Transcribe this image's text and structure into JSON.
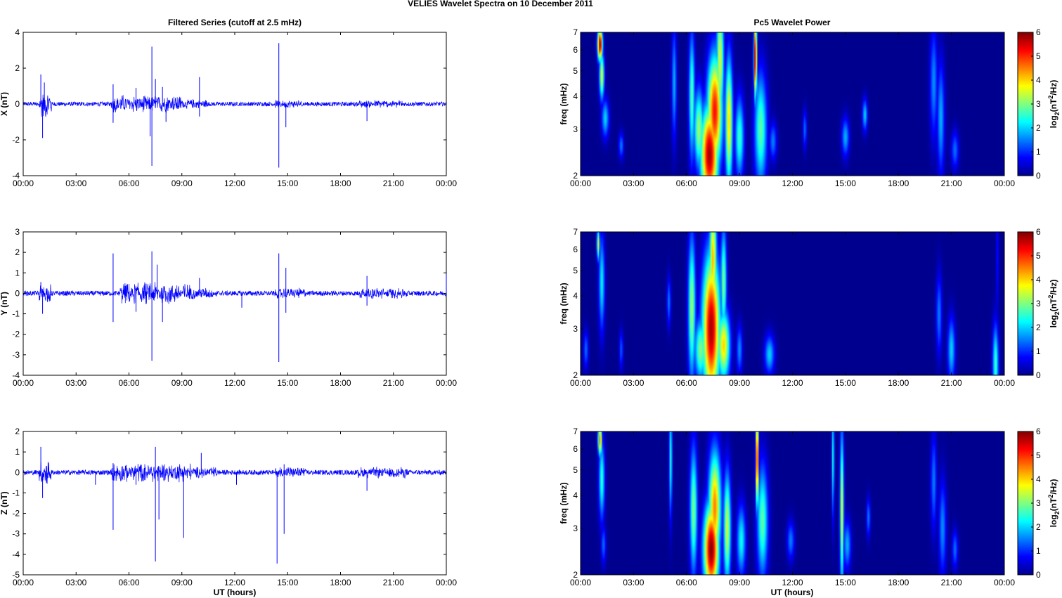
{
  "figure_title": "VELIES Wavelet Spectra on 10 December  2011",
  "left_column_title": "Filtered Series (cutoff at 2.5 mHz)",
  "right_column_title": "Pc5 Wavelet Power",
  "x_axis_label": "UT (hours)",
  "x_ticks": [
    "00:00",
    "03:00",
    "06:00",
    "09:00",
    "12:00",
    "15:00",
    "18:00",
    "21:00",
    "00:00"
  ],
  "spectrogram_ylabel": "freq (mHz)",
  "colorbar_label": "log2(nT2/Hz)",
  "colormap": [
    "#00008f",
    "#0000ff",
    "#0080ff",
    "#00ffff",
    "#80ff80",
    "#ffff00",
    "#ff8000",
    "#ff0000",
    "#800000"
  ],
  "series_color": "#0000ff",
  "chart_data": [
    {
      "type": "line",
      "panel": "X",
      "ylabel": "X (nT)",
      "ylim": [
        -4,
        4
      ],
      "yticks": [
        "4",
        "2",
        "0",
        "-2",
        "-4"
      ],
      "xlim_hours": [
        0,
        24
      ],
      "baseline_amplitude": 0.12,
      "spikes": [
        {
          "t": 1.0,
          "y": 1.65
        },
        {
          "t": 1.1,
          "y": -1.9
        },
        {
          "t": 1.2,
          "y": 1.2
        },
        {
          "t": 5.1,
          "y": 1.1
        },
        {
          "t": 5.1,
          "y": -1.05
        },
        {
          "t": 6.4,
          "y": 0.9
        },
        {
          "t": 7.2,
          "y": -1.8
        },
        {
          "t": 7.3,
          "y": 3.2
        },
        {
          "t": 7.3,
          "y": -3.45
        },
        {
          "t": 7.5,
          "y": 1.4
        },
        {
          "t": 7.9,
          "y": 0.95
        },
        {
          "t": 8.1,
          "y": -1.0
        },
        {
          "t": 10.0,
          "y": 1.5
        },
        {
          "t": 10.0,
          "y": -0.7
        },
        {
          "t": 14.5,
          "y": 3.4
        },
        {
          "t": 14.5,
          "y": -3.55
        },
        {
          "t": 14.9,
          "y": -1.3
        },
        {
          "t": 19.5,
          "y": -0.95
        }
      ],
      "bursts": [
        {
          "from": 0.9,
          "to": 1.6,
          "amp": 0.9
        },
        {
          "from": 5.0,
          "to": 9.0,
          "amp": 0.55
        },
        {
          "from": 9.0,
          "to": 10.5,
          "amp": 0.3
        },
        {
          "from": 14.3,
          "to": 15.8,
          "amp": 0.25
        },
        {
          "from": 19.0,
          "to": 21.5,
          "amp": 0.25
        }
      ]
    },
    {
      "type": "line",
      "panel": "Y",
      "ylabel": "Y (nT)",
      "ylim": [
        -4,
        3
      ],
      "yticks": [
        "3",
        "2",
        "1",
        "0",
        "-1",
        "-2",
        "-3",
        "-4"
      ],
      "xlim_hours": [
        0,
        24
      ],
      "baseline_amplitude": 0.12,
      "spikes": [
        {
          "t": 1.0,
          "y": 0.55
        },
        {
          "t": 1.1,
          "y": -1.0
        },
        {
          "t": 5.1,
          "y": 1.95
        },
        {
          "t": 5.1,
          "y": -1.4
        },
        {
          "t": 6.4,
          "y": -0.9
        },
        {
          "t": 7.3,
          "y": 2.05
        },
        {
          "t": 7.3,
          "y": -3.3
        },
        {
          "t": 7.6,
          "y": 1.4
        },
        {
          "t": 7.9,
          "y": -1.4
        },
        {
          "t": 10.0,
          "y": 0.75
        },
        {
          "t": 12.4,
          "y": -0.7
        },
        {
          "t": 14.5,
          "y": 1.95
        },
        {
          "t": 14.5,
          "y": -3.35
        },
        {
          "t": 14.9,
          "y": 1.25
        },
        {
          "t": 14.9,
          "y": -0.95
        },
        {
          "t": 19.5,
          "y": 0.85
        },
        {
          "t": 19.5,
          "y": -0.6
        },
        {
          "t": 24.0,
          "y": 0.95
        }
      ],
      "bursts": [
        {
          "from": 0.9,
          "to": 1.6,
          "amp": 0.5
        },
        {
          "from": 5.5,
          "to": 9.5,
          "amp": 0.6
        },
        {
          "from": 9.5,
          "to": 11.0,
          "amp": 0.3
        },
        {
          "from": 14.3,
          "to": 16.0,
          "amp": 0.3
        },
        {
          "from": 19.0,
          "to": 21.8,
          "amp": 0.3
        }
      ]
    },
    {
      "type": "line",
      "panel": "Z",
      "ylabel": "Z (nT)",
      "ylim": [
        -5,
        2
      ],
      "yticks": [
        "2",
        "1",
        "0",
        "-1",
        "-2",
        "-3",
        "-4",
        "-5"
      ],
      "xlim_hours": [
        0,
        24
      ],
      "baseline_amplitude": 0.12,
      "spikes": [
        {
          "t": 1.0,
          "y": 1.25
        },
        {
          "t": 1.1,
          "y": -1.25
        },
        {
          "t": 4.1,
          "y": -0.6
        },
        {
          "t": 5.1,
          "y": 0.45
        },
        {
          "t": 5.1,
          "y": -2.8
        },
        {
          "t": 6.4,
          "y": -0.6
        },
        {
          "t": 7.5,
          "y": 1.25
        },
        {
          "t": 7.5,
          "y": -4.35
        },
        {
          "t": 7.7,
          "y": -2.3
        },
        {
          "t": 9.1,
          "y": -3.2
        },
        {
          "t": 10.1,
          "y": 0.95
        },
        {
          "t": 12.1,
          "y": -0.6
        },
        {
          "t": 14.4,
          "y": -4.45
        },
        {
          "t": 14.8,
          "y": 0.4
        },
        {
          "t": 14.8,
          "y": -3.0
        },
        {
          "t": 19.5,
          "y": -0.9
        }
      ],
      "bursts": [
        {
          "from": 0.9,
          "to": 1.6,
          "amp": 0.7
        },
        {
          "from": 5.0,
          "to": 9.5,
          "amp": 0.5
        },
        {
          "from": 9.5,
          "to": 11.0,
          "amp": 0.3
        },
        {
          "from": 14.3,
          "to": 16.0,
          "amp": 0.3
        },
        {
          "from": 19.0,
          "to": 21.8,
          "amp": 0.3
        }
      ]
    },
    {
      "type": "heatmap",
      "panel": "X",
      "ylabel": "freq (mHz)",
      "yscale": "log",
      "ylim": [
        2,
        7
      ],
      "yticks": [
        "7",
        "6",
        "5",
        "4",
        "3",
        "2"
      ],
      "xlim_hours": [
        0,
        24
      ],
      "zlim": [
        0,
        6
      ],
      "colorbar_ticks": [
        "6",
        "5",
        "4",
        "3",
        "2",
        "1",
        "0"
      ],
      "blobs": [
        {
          "t": 1.1,
          "f": 6.3,
          "value": 6.0,
          "dt": 0.1,
          "df": 0.1
        },
        {
          "t": 1.2,
          "f": 4.8,
          "value": 3.5,
          "dt": 0.1,
          "df": 0.15
        },
        {
          "t": 1.4,
          "f": 3.3,
          "value": 2.0,
          "dt": 0.15,
          "df": 0.12
        },
        {
          "t": 2.3,
          "f": 2.6,
          "value": 1.5,
          "dt": 0.1,
          "df": 0.08
        },
        {
          "t": 5.3,
          "f": 4.5,
          "value": 1.8,
          "dt": 0.1,
          "df": 0.35
        },
        {
          "t": 6.3,
          "f": 4.0,
          "value": 2.8,
          "dt": 0.12,
          "df": 0.4
        },
        {
          "t": 6.7,
          "f": 3.0,
          "value": 3.2,
          "dt": 0.2,
          "df": 0.25
        },
        {
          "t": 7.3,
          "f": 2.4,
          "value": 5.8,
          "dt": 0.35,
          "df": 0.3
        },
        {
          "t": 7.6,
          "f": 3.5,
          "value": 5.2,
          "dt": 0.3,
          "df": 0.35
        },
        {
          "t": 7.9,
          "f": 5.5,
          "value": 3.6,
          "dt": 0.15,
          "df": 0.4
        },
        {
          "t": 8.4,
          "f": 3.2,
          "value": 4.0,
          "dt": 0.15,
          "df": 0.4
        },
        {
          "t": 9.0,
          "f": 2.8,
          "value": 2.6,
          "dt": 0.18,
          "df": 0.25
        },
        {
          "t": 9.9,
          "f": 5.6,
          "value": 5.8,
          "dt": 0.06,
          "df": 0.25
        },
        {
          "t": 10.2,
          "f": 3.0,
          "value": 2.8,
          "dt": 0.25,
          "df": 0.35
        },
        {
          "t": 10.9,
          "f": 2.7,
          "value": 1.5,
          "dt": 0.15,
          "df": 0.12
        },
        {
          "t": 12.7,
          "f": 3.0,
          "value": 1.4,
          "dt": 0.08,
          "df": 0.12
        },
        {
          "t": 15.0,
          "f": 2.8,
          "value": 1.8,
          "dt": 0.15,
          "df": 0.12
        },
        {
          "t": 16.1,
          "f": 3.4,
          "value": 2.0,
          "dt": 0.1,
          "df": 0.1
        },
        {
          "t": 20.0,
          "f": 4.5,
          "value": 1.6,
          "dt": 0.15,
          "df": 0.35
        },
        {
          "t": 20.4,
          "f": 3.3,
          "value": 1.8,
          "dt": 0.15,
          "df": 0.35
        },
        {
          "t": 21.2,
          "f": 2.5,
          "value": 1.4,
          "dt": 0.15,
          "df": 0.12
        }
      ]
    },
    {
      "type": "heatmap",
      "panel": "Y",
      "ylabel": "freq (mHz)",
      "yscale": "log",
      "ylim": [
        2,
        7
      ],
      "yticks": [
        "7",
        "6",
        "5",
        "4",
        "3",
        "2"
      ],
      "xlim_hours": [
        0,
        24
      ],
      "zlim": [
        0,
        6
      ],
      "colorbar_ticks": [
        "6",
        "5",
        "4",
        "3",
        "2",
        "1",
        "0"
      ],
      "blobs": [
        {
          "t": 1.0,
          "f": 6.3,
          "value": 3.5,
          "dt": 0.06,
          "df": 0.1
        },
        {
          "t": 1.2,
          "f": 4.5,
          "value": 2.2,
          "dt": 0.12,
          "df": 0.3
        },
        {
          "t": 0.3,
          "f": 2.5,
          "value": 1.4,
          "dt": 0.1,
          "df": 0.12
        },
        {
          "t": 2.3,
          "f": 2.5,
          "value": 1.3,
          "dt": 0.08,
          "df": 0.12
        },
        {
          "t": 5.0,
          "f": 3.8,
          "value": 1.5,
          "dt": 0.08,
          "df": 0.15
        },
        {
          "t": 6.3,
          "f": 3.6,
          "value": 3.2,
          "dt": 0.15,
          "df": 0.45
        },
        {
          "t": 6.8,
          "f": 2.5,
          "value": 3.0,
          "dt": 0.25,
          "df": 0.2
        },
        {
          "t": 7.4,
          "f": 3.0,
          "value": 5.8,
          "dt": 0.35,
          "df": 0.45
        },
        {
          "t": 7.5,
          "f": 5.5,
          "value": 4.2,
          "dt": 0.15,
          "df": 0.35
        },
        {
          "t": 8.1,
          "f": 2.6,
          "value": 4.0,
          "dt": 0.25,
          "df": 0.22
        },
        {
          "t": 8.1,
          "f": 4.5,
          "value": 3.0,
          "dt": 0.12,
          "df": 0.35
        },
        {
          "t": 9.0,
          "f": 2.5,
          "value": 1.6,
          "dt": 0.12,
          "df": 0.15
        },
        {
          "t": 10.7,
          "f": 2.4,
          "value": 2.0,
          "dt": 0.2,
          "df": 0.12
        },
        {
          "t": 21.0,
          "f": 2.5,
          "value": 2.0,
          "dt": 0.15,
          "df": 0.2
        },
        {
          "t": 20.3,
          "f": 3.4,
          "value": 1.5,
          "dt": 0.12,
          "df": 0.25
        },
        {
          "t": 23.5,
          "f": 2.2,
          "value": 2.6,
          "dt": 0.12,
          "df": 0.25
        },
        {
          "t": 23.6,
          "f": 5.5,
          "value": 1.2,
          "dt": 0.04,
          "df": 0.35
        }
      ]
    },
    {
      "type": "heatmap",
      "panel": "Z",
      "ylabel": "freq (mHz)",
      "yscale": "log",
      "ylim": [
        2,
        7
      ],
      "yticks": [
        "7",
        "6",
        "5",
        "4",
        "3",
        "2"
      ],
      "xlim_hours": [
        0,
        24
      ],
      "zlim": [
        0,
        6
      ],
      "colorbar_ticks": [
        "6",
        "5",
        "4",
        "3",
        "2",
        "1",
        "0"
      ],
      "blobs": [
        {
          "t": 1.1,
          "f": 6.5,
          "value": 4.6,
          "dt": 0.08,
          "df": 0.1
        },
        {
          "t": 1.2,
          "f": 4.6,
          "value": 2.5,
          "dt": 0.12,
          "df": 0.25
        },
        {
          "t": 1.3,
          "f": 2.6,
          "value": 1.4,
          "dt": 0.1,
          "df": 0.12
        },
        {
          "t": 5.1,
          "f": 5.5,
          "value": 2.6,
          "dt": 0.06,
          "df": 0.35
        },
        {
          "t": 6.4,
          "f": 3.5,
          "value": 3.0,
          "dt": 0.15,
          "df": 0.4
        },
        {
          "t": 7.4,
          "f": 2.5,
          "value": 6.0,
          "dt": 0.3,
          "df": 0.28
        },
        {
          "t": 7.6,
          "f": 3.6,
          "value": 4.5,
          "dt": 0.25,
          "df": 0.35
        },
        {
          "t": 8.3,
          "f": 3.0,
          "value": 3.5,
          "dt": 0.15,
          "df": 0.35
        },
        {
          "t": 9.1,
          "f": 2.7,
          "value": 2.3,
          "dt": 0.18,
          "df": 0.22
        },
        {
          "t": 10.0,
          "f": 5.5,
          "value": 5.6,
          "dt": 0.06,
          "df": 0.3
        },
        {
          "t": 10.3,
          "f": 3.2,
          "value": 2.8,
          "dt": 0.22,
          "df": 0.35
        },
        {
          "t": 11.9,
          "f": 2.7,
          "value": 1.5,
          "dt": 0.15,
          "df": 0.12
        },
        {
          "t": 14.3,
          "f": 5.5,
          "value": 2.5,
          "dt": 0.05,
          "df": 0.35
        },
        {
          "t": 14.8,
          "f": 3.5,
          "value": 3.6,
          "dt": 0.08,
          "df": 0.5
        },
        {
          "t": 15.1,
          "f": 2.6,
          "value": 1.8,
          "dt": 0.15,
          "df": 0.15
        },
        {
          "t": 16.3,
          "f": 3.3,
          "value": 1.5,
          "dt": 0.08,
          "df": 0.12
        },
        {
          "t": 20.0,
          "f": 4.5,
          "value": 1.5,
          "dt": 0.12,
          "df": 0.3
        },
        {
          "t": 20.5,
          "f": 3.0,
          "value": 1.6,
          "dt": 0.15,
          "df": 0.3
        },
        {
          "t": 21.2,
          "f": 2.5,
          "value": 1.4,
          "dt": 0.12,
          "df": 0.12
        }
      ]
    }
  ]
}
